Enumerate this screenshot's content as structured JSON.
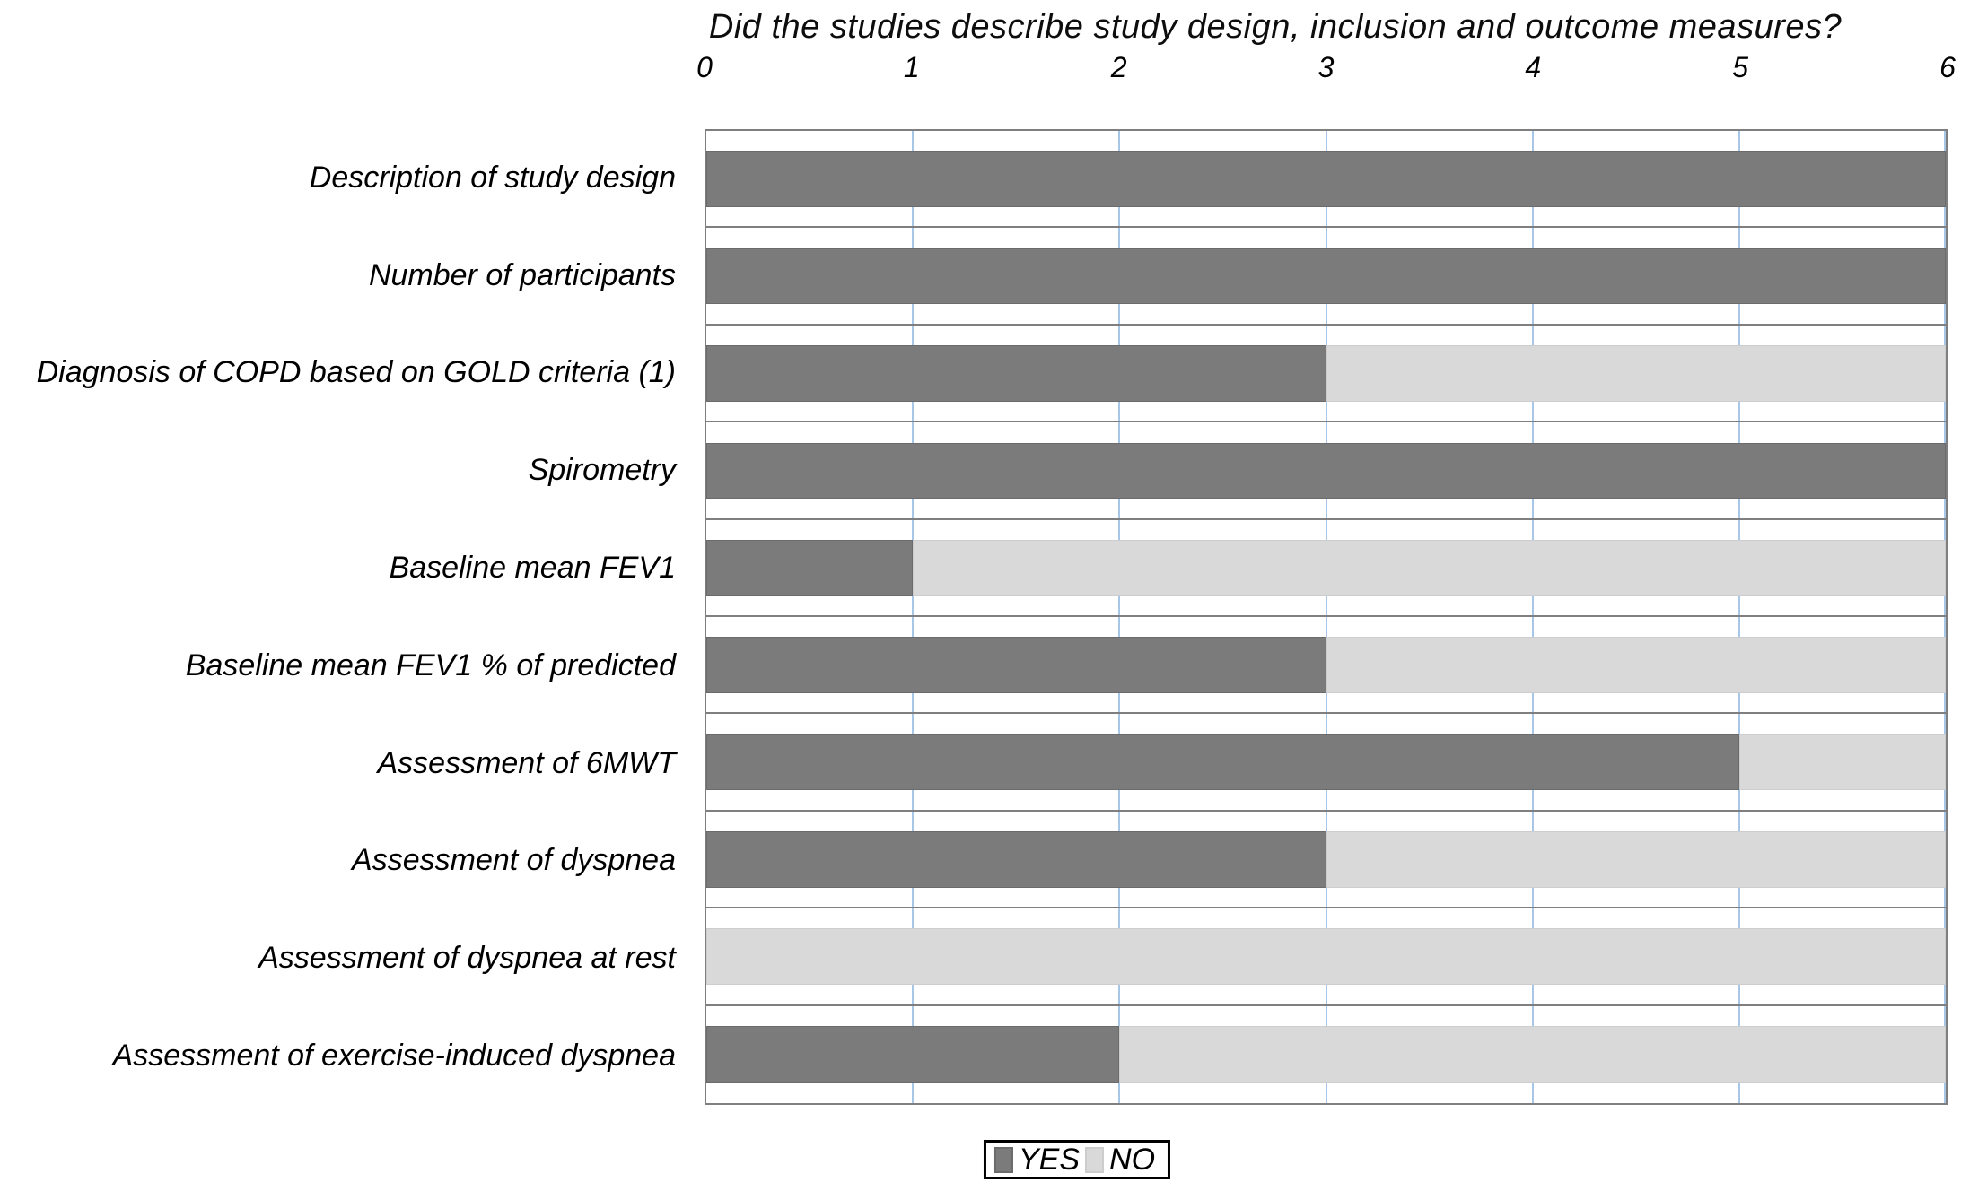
{
  "chart_data": {
    "type": "bar",
    "orientation": "horizontal",
    "stacked": true,
    "title": "Did the studies describe study design, inclusion and outcome measures?",
    "categories": [
      "Description of study design",
      "Number of participants",
      "Diagnosis of COPD based on GOLD criteria (1)",
      "Spirometry",
      "Baseline mean FEV1",
      "Baseline mean FEV1 % of predicted",
      "Assessment of 6MWT",
      "Assessment of dyspnea",
      "Assessment of dyspnea at rest",
      "Assessment of exercise-induced dyspnea"
    ],
    "series": [
      {
        "name": "YES",
        "color": "#7b7b7b",
        "border_color": "#6b6b6b",
        "values": [
          6,
          6,
          3,
          6,
          1,
          3,
          5,
          3,
          0,
          2
        ]
      },
      {
        "name": "NO",
        "color": "#d9d9d9",
        "border_color": "#cdcdcd",
        "values": [
          0,
          0,
          3,
          0,
          5,
          3,
          1,
          3,
          6,
          4
        ]
      }
    ],
    "x_ticks": [
      "0",
      "1",
      "2",
      "3",
      "4",
      "5",
      "6"
    ],
    "xlim": [
      0,
      6
    ],
    "grid": {
      "vertical_gridline_color": "#a8c6e8",
      "category_line_color": "#7f7f7f",
      "plot_border_color": "#7f7f7f"
    },
    "legend_position": "bottom"
  }
}
